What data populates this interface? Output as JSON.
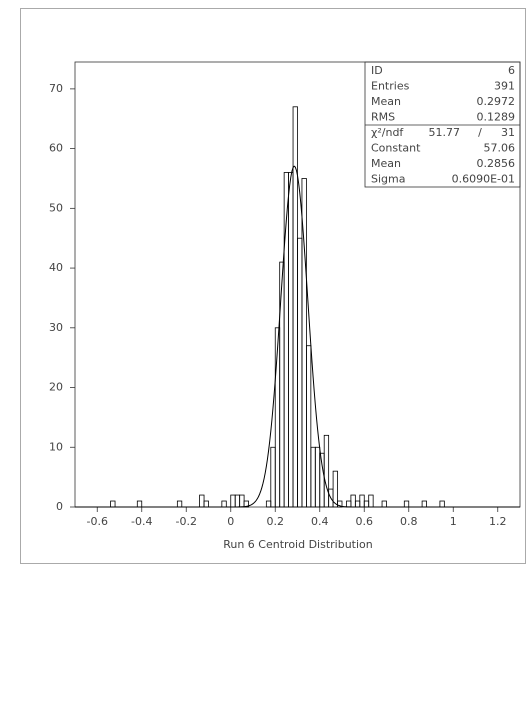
{
  "chart_data": {
    "type": "histogram",
    "xlabel": "Run 6 Centroid Distribution",
    "bins": [
      -0.7,
      -0.68,
      -0.66,
      -0.64,
      -0.62,
      -0.6,
      -0.58,
      -0.56,
      -0.54,
      -0.52,
      -0.5,
      -0.48,
      -0.46,
      -0.44,
      -0.42,
      -0.4,
      -0.38,
      -0.36,
      -0.34,
      -0.32,
      -0.3,
      -0.28,
      -0.26,
      -0.24,
      -0.22,
      -0.2,
      -0.18,
      -0.16,
      -0.14,
      -0.12,
      -0.1,
      -0.08,
      -0.06,
      -0.04,
      -0.02,
      0,
      0.02,
      0.04,
      0.06,
      0.08,
      0.1,
      0.12,
      0.14,
      0.16,
      0.18,
      0.2,
      0.22,
      0.24,
      0.26,
      0.28,
      0.3,
      0.32,
      0.34,
      0.36,
      0.38,
      0.4,
      0.42,
      0.44,
      0.46,
      0.48,
      0.5,
      0.52,
      0.54,
      0.56,
      0.58,
      0.6,
      0.62,
      0.64,
      0.66,
      0.68,
      0.7,
      0.72,
      0.74,
      0.76,
      0.78,
      0.8,
      0.82,
      0.84,
      0.86,
      0.88,
      0.9,
      0.92,
      0.94,
      0.96,
      0.98,
      1,
      1.02,
      1.04,
      1.06,
      1.08,
      1.1,
      1.12,
      1.14,
      1.16,
      1.18,
      1.2,
      1.22,
      1.24,
      1.26,
      1.28,
      1.3
    ],
    "values": [
      0,
      0,
      0,
      0,
      0,
      0,
      0,
      0,
      1,
      0,
      0,
      0,
      0,
      0,
      1,
      0,
      0,
      0,
      0,
      0,
      0,
      0,
      0,
      1,
      0,
      0,
      0,
      0,
      2,
      1,
      0,
      0,
      0,
      1,
      0,
      2,
      2,
      2,
      1,
      0,
      0,
      0,
      0,
      1,
      10,
      30,
      41,
      56,
      56,
      67,
      45,
      55,
      27,
      10,
      10,
      9,
      12,
      3,
      6,
      1,
      0,
      1,
      2,
      1,
      2,
      1,
      2,
      0,
      0,
      1,
      0,
      0,
      0,
      0,
      1,
      0,
      0,
      0,
      1,
      0,
      0,
      0,
      1,
      0,
      0,
      0,
      0,
      0,
      0,
      0,
      0,
      0,
      0,
      0,
      0,
      0,
      0,
      0,
      0,
      0
    ],
    "color": "#000000",
    "xlim": [
      -0.7,
      1.3
    ],
    "xticks": [
      -0.6,
      -0.4,
      -0.2,
      0,
      0.2,
      0.4,
      0.6,
      0.8,
      1,
      1.2
    ],
    "ylim": [
      0,
      74.5
    ],
    "yticks": [
      0,
      10,
      20,
      30,
      40,
      50,
      60,
      70
    ],
    "stats": [
      {
        "label": "ID",
        "value": "6"
      },
      {
        "label": "Entries",
        "value": "391"
      },
      {
        "label": "Mean",
        "value": "0.2972"
      },
      {
        "label": "RMS",
        "value": "0.1289"
      }
    ],
    "chi2": {
      "label": "χ²/ndf",
      "value": "51.77",
      "sep": "/",
      "ndf": "31"
    },
    "fit": {
      "constant": 57.06,
      "mean": 0.2856,
      "sigma": {
        "value": 0.0609,
        "label": "0.6090E-01"
      },
      "labels": {
        "constant": "Constant",
        "mean": "Mean",
        "sigma": "Sigma"
      }
    }
  }
}
